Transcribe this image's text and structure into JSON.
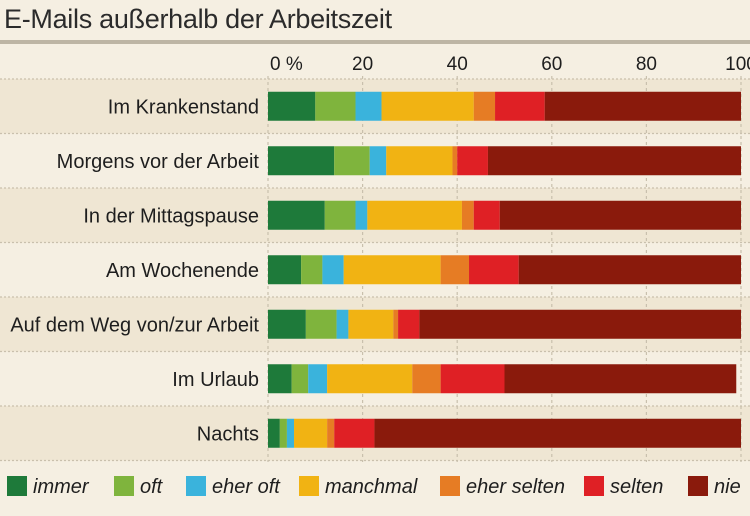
{
  "chart_data": {
    "type": "bar",
    "orientation": "horizontal",
    "stacked": true,
    "title": "E-Mails außerhalb der Arbeitszeit",
    "xlim": [
      0,
      100
    ],
    "x_ticks": [
      "0 %",
      "20",
      "40",
      "60",
      "80",
      "100"
    ],
    "x_tick_values": [
      0,
      20,
      40,
      60,
      80,
      100
    ],
    "grid": true,
    "legend_position": "bottom",
    "categories": [
      "Im Krankenstand",
      "Morgens vor der Arbeit",
      "In der Mittagspause",
      "Am Wochenende",
      "Auf dem Weg von/zur Arbeit",
      "Im Urlaub",
      "Nachts"
    ],
    "series": [
      {
        "name": "immer",
        "color": "#1e7a3a",
        "values": [
          10,
          14,
          12,
          7,
          8,
          5,
          2.5
        ]
      },
      {
        "name": "oft",
        "color": "#7fb43d",
        "values": [
          8.5,
          7.5,
          6.5,
          4.5,
          6.5,
          3.5,
          1.5
        ]
      },
      {
        "name": "eher oft",
        "color": "#3ab3dc",
        "values": [
          5.5,
          3.5,
          2.5,
          4.5,
          2.5,
          4,
          1.5
        ]
      },
      {
        "name": "manchmal",
        "color": "#f1b313",
        "values": [
          19.5,
          14,
          20,
          20.5,
          9.5,
          18,
          7
        ]
      },
      {
        "name": "eher selten",
        "color": "#e67c24",
        "values": [
          4.5,
          1,
          2.5,
          6,
          1,
          6,
          1.5
        ]
      },
      {
        "name": "selten",
        "color": "#df2025",
        "values": [
          10.5,
          6.5,
          5.5,
          10.5,
          4.5,
          13.5,
          8.5
        ]
      },
      {
        "name": "nie",
        "color": "#8a1a0c",
        "values": [
          41.5,
          53.5,
          51,
          47,
          68,
          49,
          77.5
        ]
      }
    ]
  }
}
